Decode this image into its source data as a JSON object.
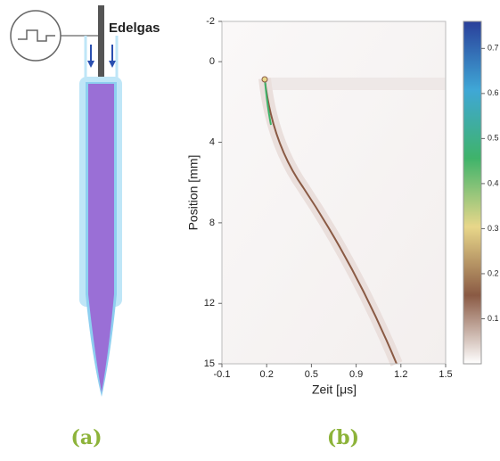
{
  "panel_a": {
    "gas_label": "Edelgas",
    "caption": "(a)"
  },
  "chart_data": {
    "type": "heatmap",
    "caption": "(b)",
    "xlabel": "Zeit [μs]",
    "ylabel": "Position [mm]",
    "xlim": [
      -0.1,
      1.5
    ],
    "xticks": [
      -0.1,
      {
        "value": 0.22,
        "label": "0.2"
      },
      {
        "value": 0.54,
        "label": "0.5"
      },
      {
        "value": 0.86,
        "label": "0.9"
      },
      {
        "value": 1.18,
        "label": "1.2"
      },
      1.5
    ],
    "ylim": [
      -2,
      15
    ],
    "y_inverted": true,
    "yticks": [
      -2,
      0,
      4,
      8,
      12,
      15
    ],
    "colorbar": {
      "lim": [
        0,
        0.76
      ],
      "ticks": [
        0.1,
        0.2,
        0.3,
        0.4,
        0.5,
        0.6,
        0.7
      ],
      "colormap": [
        "#ffffff",
        "#8a5a44",
        "#e8d78a",
        "#3fb36a",
        "#3fa7d6",
        "#2a3f9a"
      ]
    }
  }
}
